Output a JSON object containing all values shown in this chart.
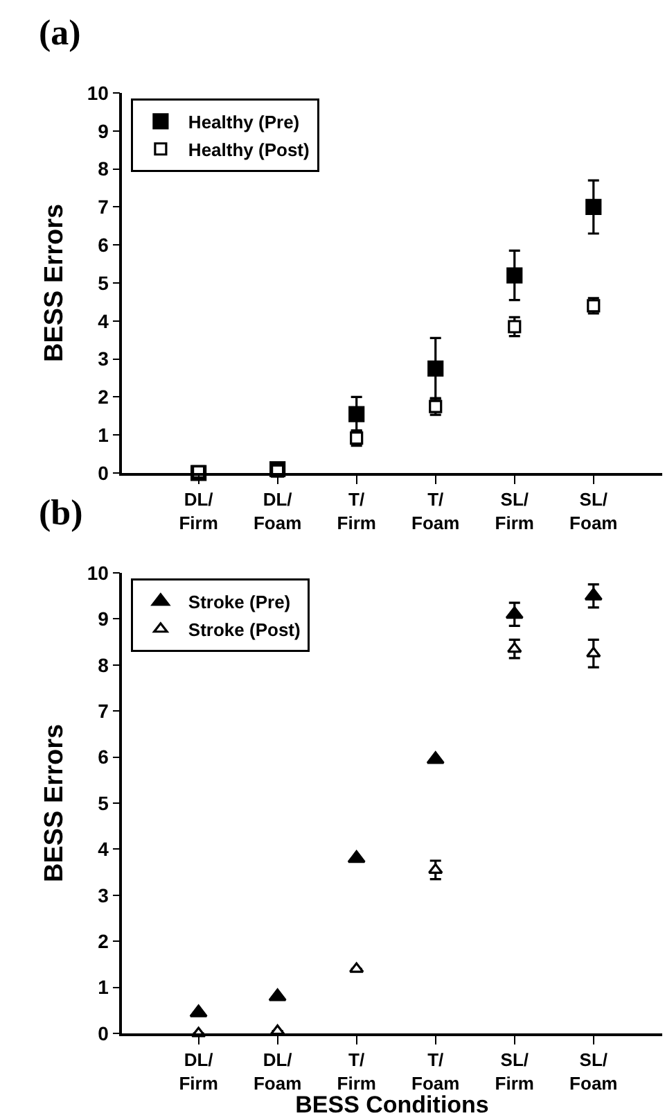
{
  "chart_data": [
    {
      "type": "scatter",
      "title": "(a)",
      "ylabel": "BESS Errors",
      "categories": [
        "DL/\nFirm",
        "DL/\nFoam",
        "T/\nFirm",
        "T/\nFoam",
        "SL/\nFirm",
        "SL/\nFoam"
      ],
      "ylim": [
        0,
        10
      ],
      "yticks": [
        0,
        1,
        2,
        3,
        4,
        5,
        6,
        7,
        8,
        9,
        10
      ],
      "legend": "top left",
      "marker": "square",
      "series": [
        {
          "name": "Healthy (Pre)",
          "color": "#000000",
          "values": [
            0,
            0.1,
            1.55,
            2.75,
            5.2,
            7.0
          ],
          "errors": [
            null,
            null,
            0.45,
            0.8,
            0.65,
            0.7
          ]
        },
        {
          "name": "Healthy (Post)",
          "color": "#ffffff",
          "values": [
            0.03,
            0.05,
            0.92,
            1.75,
            3.85,
            4.4
          ],
          "errors": [
            null,
            null,
            0.2,
            0.22,
            0.25,
            0.2
          ]
        }
      ]
    },
    {
      "type": "scatter",
      "title": "(b)",
      "ylabel": "BESS Errors",
      "xlabel": "BESS Conditions",
      "categories": [
        "DL/\nFirm",
        "DL/\nFoam",
        "T/\nFirm",
        "T/\nFoam",
        "SL/\nFirm",
        "SL/\nFoam"
      ],
      "ylim": [
        0,
        10
      ],
      "yticks": [
        0,
        1,
        2,
        3,
        4,
        5,
        6,
        7,
        8,
        9,
        10
      ],
      "legend": "top left",
      "marker": "triangle",
      "series": [
        {
          "name": "Stroke (Pre)",
          "color": "#000000",
          "values": [
            0.45,
            0.8,
            3.8,
            5.95,
            9.1,
            9.5
          ],
          "errors": [
            null,
            null,
            null,
            null,
            0.25,
            0.25
          ]
        },
        {
          "name": "Stroke (Post)",
          "color": "#ffffff",
          "values": [
            0.0,
            0.05,
            1.4,
            3.55,
            8.35,
            8.25
          ],
          "errors": [
            null,
            null,
            null,
            0.2,
            0.2,
            0.3
          ]
        }
      ]
    }
  ]
}
